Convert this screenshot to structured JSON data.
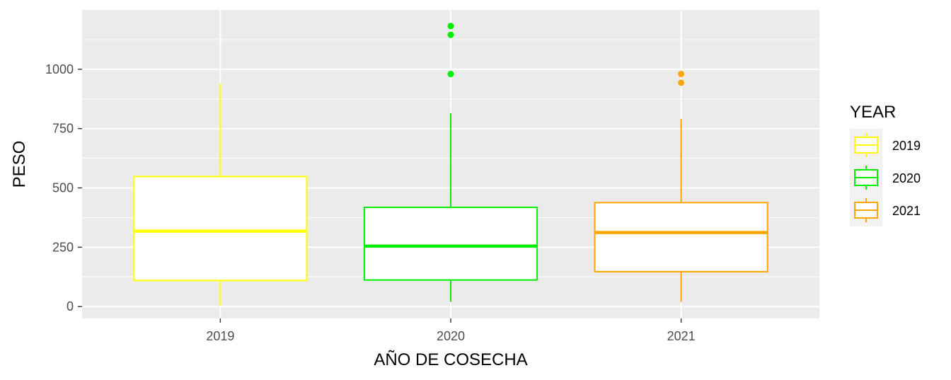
{
  "chart_data": {
    "type": "boxplot",
    "xlabel": "AÑO DE COSECHA",
    "ylabel": "PESO",
    "categories": [
      "2019",
      "2020",
      "2021"
    ],
    "ylim": [
      -50,
      1250
    ],
    "yticks": [
      0,
      250,
      500,
      750,
      1000
    ],
    "ytick_labels": [
      "0",
      "250",
      "500",
      "750",
      "1000"
    ],
    "grid": true,
    "legend": {
      "title": "YEAR",
      "position": "right",
      "entries": [
        {
          "label": "2019",
          "color": "#FFFF00"
        },
        {
          "label": "2020",
          "color": "#00EE00"
        },
        {
          "label": "2021",
          "color": "#FFA500"
        }
      ]
    },
    "series": [
      {
        "category": "2019",
        "color": "#FFFF00",
        "whisker_low": 5,
        "q1": 110,
        "median": 318,
        "q3": 548,
        "whisker_high": 940,
        "outliers": []
      },
      {
        "category": "2020",
        "color": "#00EE00",
        "whisker_low": 20,
        "q1": 112,
        "median": 255,
        "q3": 418,
        "whisker_high": 815,
        "outliers": [
          980,
          1145,
          1182
        ]
      },
      {
        "category": "2021",
        "color": "#FFA500",
        "whisker_low": 20,
        "q1": 147,
        "median": 312,
        "q3": 438,
        "whisker_high": 790,
        "outliers": [
          943,
          980
        ]
      }
    ]
  }
}
